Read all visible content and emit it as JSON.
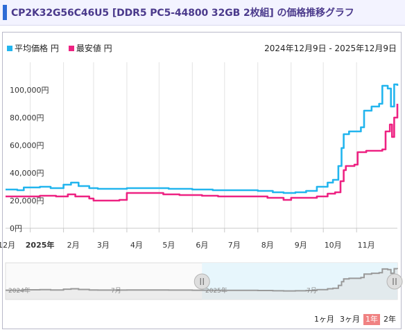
{
  "page": {
    "title": "CP2K32G56C46U5 [DDR5 PC5-44800 32GB 2枚組] の価格推移グラフ"
  },
  "legend": {
    "avg_label": "平均価格 円",
    "min_label": "最安値 円"
  },
  "date_range": "2024年12月9日 - 2025年12月9日",
  "range_buttons": [
    "1ヶ月",
    "3ヶ月",
    "1年",
    "2年"
  ],
  "active_range": "1年",
  "navigator": {
    "labels": [
      "2024年",
      "7月",
      "2025年",
      "7月"
    ]
  },
  "colors": {
    "avg": "#22b5ee",
    "min": "#ee2282",
    "navigator_line": "#999999",
    "navigator_fill": "#e4f5fc"
  },
  "chart_data": {
    "type": "line",
    "title": "",
    "xlabel": "",
    "ylabel": "",
    "ylim": [
      0,
      120000
    ],
    "yticks": [
      0,
      20000,
      40000,
      60000,
      80000,
      100000
    ],
    "ytick_labels": [
      "0円",
      "20,000円",
      "40,000円",
      "60,000円",
      "80,000円",
      "100,000円"
    ],
    "xticks": [
      "2024-12-01",
      "2025-01-01",
      "2025-02-01",
      "2025-03-01",
      "2025-04-01",
      "2025-05-01",
      "2025-06-01",
      "2025-07-01",
      "2025-08-01",
      "2025-09-01",
      "2025-10-01",
      "2025-11-01"
    ],
    "xtick_labels": [
      "12月",
      "2025年",
      "2月",
      "3月",
      "4月",
      "5月",
      "6月",
      "7月",
      "8月",
      "9月",
      "10月",
      "11月"
    ],
    "xlim": [
      "2024-12-09",
      "2025-12-09"
    ],
    "grid": "vertical",
    "legend_position": "top-left",
    "series": [
      {
        "name": "平均価格 円",
        "points": [
          [
            "2024-12-09",
            28000
          ],
          [
            "2024-12-20",
            27500
          ],
          [
            "2024-12-26",
            29500
          ],
          [
            "2025-01-10",
            30000
          ],
          [
            "2025-01-20",
            29000
          ],
          [
            "2025-02-01",
            31500
          ],
          [
            "2025-02-08",
            33000
          ],
          [
            "2025-02-15",
            30500
          ],
          [
            "2025-02-25",
            29000
          ],
          [
            "2025-03-05",
            28500
          ],
          [
            "2025-03-20",
            28500
          ],
          [
            "2025-04-01",
            29000
          ],
          [
            "2025-04-20",
            29000
          ],
          [
            "2025-05-10",
            28500
          ],
          [
            "2025-06-01",
            28000
          ],
          [
            "2025-06-20",
            27500
          ],
          [
            "2025-07-05",
            27500
          ],
          [
            "2025-07-20",
            27500
          ],
          [
            "2025-08-01",
            27000
          ],
          [
            "2025-08-15",
            26000
          ],
          [
            "2025-08-25",
            25500
          ],
          [
            "2025-09-05",
            26000
          ],
          [
            "2025-09-15",
            27000
          ],
          [
            "2025-09-25",
            30000
          ],
          [
            "2025-10-05",
            33000
          ],
          [
            "2025-10-10",
            35000
          ],
          [
            "2025-10-15",
            45000
          ],
          [
            "2025-10-18",
            58000
          ],
          [
            "2025-10-20",
            68000
          ],
          [
            "2025-10-25",
            70000
          ],
          [
            "2025-11-05",
            73000
          ],
          [
            "2025-11-08",
            85000
          ],
          [
            "2025-11-15",
            88000
          ],
          [
            "2025-11-22",
            90000
          ],
          [
            "2025-11-25",
            103000
          ],
          [
            "2025-11-30",
            101000
          ],
          [
            "2025-12-03",
            88000
          ],
          [
            "2025-12-06",
            104000
          ],
          [
            "2025-12-09",
            103000
          ]
        ]
      },
      {
        "name": "最安値 円",
        "points": [
          [
            "2024-12-09",
            23000
          ],
          [
            "2024-12-25",
            23000
          ],
          [
            "2025-01-10",
            23500
          ],
          [
            "2025-01-25",
            23000
          ],
          [
            "2025-02-05",
            24500
          ],
          [
            "2025-02-12",
            23000
          ],
          [
            "2025-02-25",
            21500
          ],
          [
            "2025-03-01",
            20000
          ],
          [
            "2025-03-25",
            20500
          ],
          [
            "2025-04-01",
            25500
          ],
          [
            "2025-04-20",
            25500
          ],
          [
            "2025-05-05",
            24500
          ],
          [
            "2025-05-20",
            24000
          ],
          [
            "2025-06-10",
            23500
          ],
          [
            "2025-06-25",
            23000
          ],
          [
            "2025-07-15",
            23000
          ],
          [
            "2025-08-01",
            23000
          ],
          [
            "2025-08-10",
            22000
          ],
          [
            "2025-08-25",
            20500
          ],
          [
            "2025-09-01",
            22000
          ],
          [
            "2025-09-15",
            22000
          ],
          [
            "2025-09-25",
            23000
          ],
          [
            "2025-10-05",
            25000
          ],
          [
            "2025-10-12",
            26000
          ],
          [
            "2025-10-17",
            34000
          ],
          [
            "2025-10-20",
            42000
          ],
          [
            "2025-10-22",
            45000
          ],
          [
            "2025-10-30",
            46000
          ],
          [
            "2025-11-02",
            55000
          ],
          [
            "2025-11-10",
            56000
          ],
          [
            "2025-11-25",
            57000
          ],
          [
            "2025-11-28",
            70000
          ],
          [
            "2025-12-02",
            75000
          ],
          [
            "2025-12-04",
            66000
          ],
          [
            "2025-12-06",
            80000
          ],
          [
            "2025-12-09",
            90000
          ]
        ]
      }
    ]
  }
}
